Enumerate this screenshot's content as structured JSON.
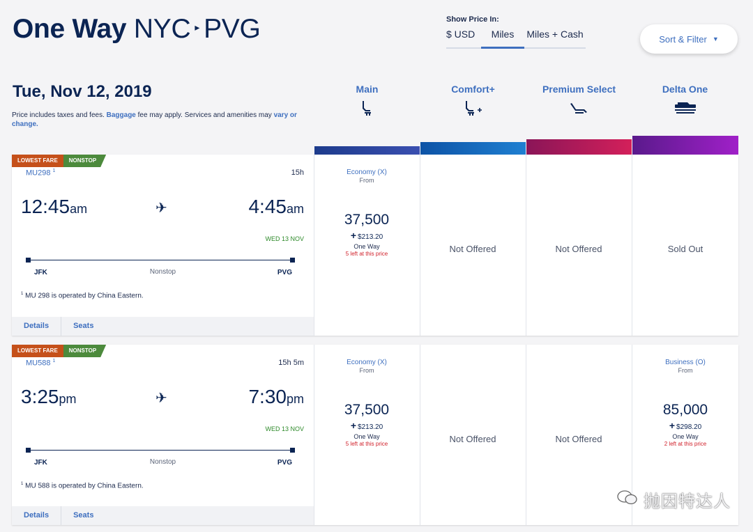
{
  "header": {
    "one_way": "One Way",
    "origin": "NYC",
    "destination": "PVG",
    "show_price_label": "Show Price In:",
    "price_options": [
      "$ USD",
      "Miles",
      "Miles + Cash"
    ],
    "selected_price_option": "Miles",
    "sort_filter_label": "Sort & Filter"
  },
  "date_title": "Tue, Nov 12, 2019",
  "disclaimer": {
    "part1": "Price includes taxes and fees. ",
    "baggage_link": "Baggage",
    "part2": " fee may apply. Services and amenities may ",
    "vary_link": "vary or change."
  },
  "cabins": [
    {
      "name": "Main",
      "icon": "seat-icon",
      "color_start": "#1d3b8c",
      "color_end": "#3a4fb0"
    },
    {
      "name": "Comfort+",
      "icon": "seat-plus-icon",
      "color_start": "#0d53a6",
      "color_end": "#1f7fd1"
    },
    {
      "name": "Premium Select",
      "icon": "recliner-icon",
      "color_start": "#8a1558",
      "color_end": "#d4205a"
    },
    {
      "name": "Delta One",
      "icon": "flatbed-icon",
      "color_start": "#5a1a8c",
      "color_end": "#a020c8"
    }
  ],
  "flights": [
    {
      "badges": [
        "LOWEST FARE",
        "NONSTOP"
      ],
      "flight_number": "MU298",
      "footnote": "1",
      "duration": "15h",
      "depart_time": "12:45",
      "depart_ampm": "am",
      "arrive_time": "4:45",
      "arrive_ampm": "am",
      "arrive_day": "WED 13 NOV",
      "from": "JFK",
      "to": "PVG",
      "stops": "Nonstop",
      "operated_by": "MU 298 is operated by China Eastern.",
      "details_label": "Details",
      "seats_label": "Seats",
      "fares": [
        {
          "type": "fare",
          "class": "Economy (X)",
          "from": "From",
          "miles": "37,500",
          "tax": "$213.20",
          "trip": "One Way",
          "availability": "5 left at this price"
        },
        {
          "type": "status",
          "text": "Not Offered"
        },
        {
          "type": "status",
          "text": "Not Offered"
        },
        {
          "type": "status",
          "text": "Sold Out"
        }
      ]
    },
    {
      "badges": [
        "LOWEST FARE",
        "NONSTOP"
      ],
      "flight_number": "MU588",
      "footnote": "1",
      "duration": "15h 5m",
      "depart_time": "3:25",
      "depart_ampm": "pm",
      "arrive_time": "7:30",
      "arrive_ampm": "pm",
      "arrive_day": "WED 13 NOV",
      "from": "JFK",
      "to": "PVG",
      "stops": "Nonstop",
      "operated_by": "MU 588 is operated by China Eastern.",
      "details_label": "Details",
      "seats_label": "Seats",
      "fares": [
        {
          "type": "fare",
          "class": "Economy (X)",
          "from": "From",
          "miles": "37,500",
          "tax": "$213.20",
          "trip": "One Way",
          "availability": "5 left at this price"
        },
        {
          "type": "status",
          "text": "Not Offered"
        },
        {
          "type": "status",
          "text": "Not Offered"
        },
        {
          "type": "fare",
          "class": "Business (O)",
          "from": "From",
          "miles": "85,000",
          "tax": "$298.20",
          "trip": "One Way",
          "availability": "2 left at this price"
        }
      ]
    }
  ],
  "watermark": "抛因特达人"
}
